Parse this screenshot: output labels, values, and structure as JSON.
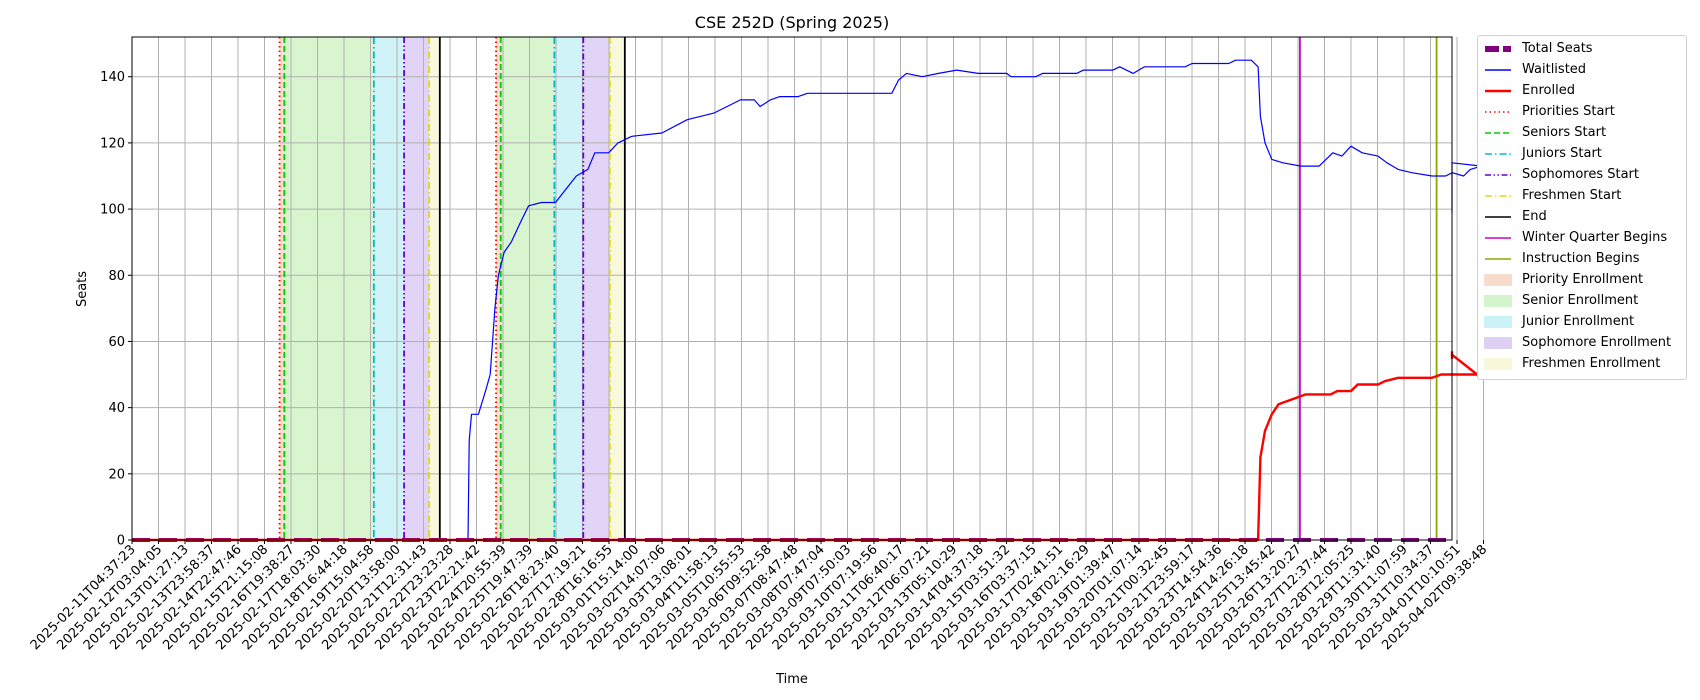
{
  "chart_data": {
    "type": "line",
    "title": "CSE 252D (Spring 2025)",
    "xlabel": "Time",
    "ylabel": "Seats",
    "ylim": [
      0,
      152
    ],
    "yticks": [
      0,
      20,
      40,
      60,
      80,
      100,
      120,
      140
    ],
    "grid": true,
    "legend_position": "outside-right",
    "xlim": [
      "2025-02-11T04:37:23",
      "2025-04-03T00:00:00"
    ],
    "xtick_labels": [
      "2025-02-11T04:37:23",
      "2025-02-12T03:04:05",
      "2025-02-13T01:27:13",
      "2025-02-13T23:58:37",
      "2025-02-14T22:47:46",
      "2025-02-15T21:15:08",
      "2025-02-16T19:38:27",
      "2025-02-17T18:03:30",
      "2025-02-18T16:44:18",
      "2025-02-19T15:04:58",
      "2025-02-20T13:58:00",
      "2025-02-21T12:31:43",
      "2025-02-22T23:23:28",
      "2025-02-23T22:21:42",
      "2025-02-24T20:55:39",
      "2025-02-25T19:47:39",
      "2025-02-26T18:23:40",
      "2025-02-27T17:19:21",
      "2025-02-28T16:16:55",
      "2025-03-01T15:14:00",
      "2025-03-02T14:07:06",
      "2025-03-03T13:08:01",
      "2025-03-04T11:58:13",
      "2025-03-05T10:55:53",
      "2025-03-06T09:52:58",
      "2025-03-07T08:47:48",
      "2025-03-08T07:47:04",
      "2025-03-09T07:50:03",
      "2025-03-10T07:19:56",
      "2025-03-11T06:40:17",
      "2025-03-12T06:07:21",
      "2025-03-13T05:10:29",
      "2025-03-14T04:37:18",
      "2025-03-15T03:51:32",
      "2025-03-16T03:37:15",
      "2025-03-17T02:41:51",
      "2025-03-18T02:16:29",
      "2025-03-19T01:39:47",
      "2025-03-20T01:07:14",
      "2025-03-21T00:32:45",
      "2025-03-21T23:59:17",
      "2025-03-23T14:54:36",
      "2025-03-24T14:26:18",
      "2025-03-25T13:45:42",
      "2025-03-26T13:20:27",
      "2025-03-27T12:37:44",
      "2025-03-28T12:05:25",
      "2025-03-29T11:31:40",
      "2025-03-30T11:07:59",
      "2025-03-31T10:34:37",
      "2025-04-01T10:10:51",
      "2025-04-02T09:38:48"
    ],
    "series": [
      {
        "name": "Total Seats",
        "color": "#800080",
        "style": "thick-dashed",
        "points": [
          [
            "2025-02-11T04:37:23",
            0
          ],
          [
            "2025-04-03T00:00:00",
            0
          ]
        ]
      },
      {
        "name": "Waitlisted",
        "color": "#0000ff",
        "style": "solid",
        "points": [
          [
            "2025-02-11T04:37:23",
            0
          ],
          [
            "2025-02-23T15:00:00",
            0
          ],
          [
            "2025-02-23T16:00:00",
            30
          ],
          [
            "2025-02-23T18:00:00",
            38
          ],
          [
            "2025-02-24T00:00:00",
            38
          ],
          [
            "2025-02-24T06:00:00",
            45
          ],
          [
            "2025-02-24T10:00:00",
            50
          ],
          [
            "2025-02-24T14:00:00",
            70
          ],
          [
            "2025-02-24T17:00:00",
            80
          ],
          [
            "2025-02-24T22:00:00",
            87
          ],
          [
            "2025-02-25T04:00:00",
            90
          ],
          [
            "2025-02-25T12:00:00",
            96
          ],
          [
            "2025-02-25T19:00:00",
            101
          ],
          [
            "2025-02-26T06:00:00",
            102
          ],
          [
            "2025-02-26T18:00:00",
            102
          ],
          [
            "2025-02-27T03:00:00",
            106
          ],
          [
            "2025-02-27T12:00:00",
            110
          ],
          [
            "2025-02-27T22:00:00",
            112
          ],
          [
            "2025-02-28T04:00:00",
            117
          ],
          [
            "2025-02-28T16:00:00",
            117
          ],
          [
            "2025-03-01T00:00:00",
            120
          ],
          [
            "2025-03-01T12:00:00",
            122
          ],
          [
            "2025-03-02T14:00:00",
            123
          ],
          [
            "2025-03-03T12:00:00",
            127
          ],
          [
            "2025-03-04T11:00:00",
            129
          ],
          [
            "2025-03-05T10:00:00",
            133
          ],
          [
            "2025-03-05T22:00:00",
            133
          ],
          [
            "2025-03-06T03:00:00",
            131
          ],
          [
            "2025-03-06T12:00:00",
            133
          ],
          [
            "2025-03-06T20:00:00",
            134
          ],
          [
            "2025-03-07T12:00:00",
            134
          ],
          [
            "2025-03-07T20:00:00",
            135
          ],
          [
            "2025-03-08T06:00:00",
            135
          ],
          [
            "2025-03-10T23:00:00",
            135
          ],
          [
            "2025-03-11T05:00:00",
            139
          ],
          [
            "2025-03-11T12:00:00",
            141
          ],
          [
            "2025-03-12T02:00:00",
            140
          ],
          [
            "2025-03-12T16:00:00",
            141
          ],
          [
            "2025-03-13T08:00:00",
            142
          ],
          [
            "2025-03-14T03:00:00",
            141
          ],
          [
            "2025-03-15T04:00:00",
            141
          ],
          [
            "2025-03-15T08:00:00",
            140
          ],
          [
            "2025-03-16T06:00:00",
            140
          ],
          [
            "2025-03-16T12:00:00",
            141
          ],
          [
            "2025-03-17T18:00:00",
            141
          ],
          [
            "2025-03-18T00:00:00",
            142
          ],
          [
            "2025-03-19T02:00:00",
            142
          ],
          [
            "2025-03-19T08:00:00",
            143
          ],
          [
            "2025-03-19T20:00:00",
            141
          ],
          [
            "2025-03-20T06:00:00",
            143
          ],
          [
            "2025-03-21T18:00:00",
            143
          ],
          [
            "2025-03-22T00:00:00",
            144
          ],
          [
            "2025-03-24T00:00:00",
            144
          ],
          [
            "2025-03-24T06:00:00",
            145
          ],
          [
            "2025-03-24T20:00:00",
            145
          ],
          [
            "2025-03-25T02:00:00",
            143
          ],
          [
            "2025-03-25T04:00:00",
            128
          ],
          [
            "2025-03-25T08:00:00",
            120
          ],
          [
            "2025-03-25T14:00:00",
            115
          ],
          [
            "2025-03-26T00:00:00",
            114
          ],
          [
            "2025-03-26T16:00:00",
            113
          ],
          [
            "2025-03-27T08:00:00",
            113
          ],
          [
            "2025-03-27T14:00:00",
            115
          ],
          [
            "2025-03-27T20:00:00",
            117
          ],
          [
            "2025-03-28T04:00:00",
            116
          ],
          [
            "2025-03-28T12:00:00",
            119
          ],
          [
            "2025-03-28T22:00:00",
            117
          ],
          [
            "2025-03-29T12:00:00",
            116
          ],
          [
            "2025-03-29T20:00:00",
            114
          ],
          [
            "2025-03-30T06:00:00",
            112
          ],
          [
            "2025-03-30T18:00:00",
            111
          ],
          [
            "2025-03-31T12:00:00",
            110
          ],
          [
            "2025-04-01T00:00:00",
            110
          ],
          [
            "2025-04-01T06:00:00",
            111
          ],
          [
            "2025-04-01T16:00:00",
            110
          ],
          [
            "2025-04-01T22:00:00",
            112
          ],
          [
            "2025-04-02T08:00:00",
            113
          ],
          [
            "2025-04-02T10:00:00",
            114
          ],
          [
            "2025-04-02T14:00:00",
            111
          ],
          [
            "2025-04-02T18:00:00",
            113
          ],
          [
            "2025-04-02T20:00:00",
            108
          ],
          [
            "2025-04-02T22:00:00",
            103
          ],
          [
            "2025-04-02T23:00:00",
            101
          ],
          [
            "2025-04-03T00:00:00",
            99
          ]
        ]
      },
      {
        "name": "Enrolled",
        "color": "#ff0000",
        "style": "thick",
        "points": [
          [
            "2025-02-11T04:37:23",
            0
          ],
          [
            "2025-03-25T02:00:00",
            0
          ],
          [
            "2025-03-25T04:00:00",
            25
          ],
          [
            "2025-03-25T08:00:00",
            33
          ],
          [
            "2025-03-25T14:00:00",
            38
          ],
          [
            "2025-03-25T20:00:00",
            41
          ],
          [
            "2025-03-26T04:00:00",
            42
          ],
          [
            "2025-03-26T12:00:00",
            43
          ],
          [
            "2025-03-26T20:00:00",
            44
          ],
          [
            "2025-03-27T18:00:00",
            44
          ],
          [
            "2025-03-28T00:00:00",
            45
          ],
          [
            "2025-03-28T12:00:00",
            45
          ],
          [
            "2025-03-28T18:00:00",
            47
          ],
          [
            "2025-03-29T12:00:00",
            47
          ],
          [
            "2025-03-29T18:00:00",
            48
          ],
          [
            "2025-03-30T06:00:00",
            49
          ],
          [
            "2025-03-31T12:00:00",
            49
          ],
          [
            "2025-03-31T20:00:00",
            50
          ],
          [
            "2025-04-02T04:00:00",
            50
          ],
          [
            "2025-04-02T10:00:00",
            56
          ],
          [
            "2025-04-02T14:00:00",
            56
          ],
          [
            "2025-04-02T18:00:00",
            55
          ],
          [
            "2025-04-02T22:00:00",
            56
          ],
          [
            "2025-04-03T00:00:00",
            57
          ]
        ]
      }
    ],
    "markers": [
      {
        "name": "Priorities Start",
        "color": "#ff0000",
        "style": "dotted",
        "x": [
          "2025-02-16T10:00:00",
          "2025-02-24T15:00:00"
        ]
      },
      {
        "name": "Seniors Start",
        "color": "#00cc00",
        "style": "dashed",
        "x": [
          "2025-02-16T14:00:00",
          "2025-02-24T19:00:00"
        ]
      },
      {
        "name": "Juniors Start",
        "color": "#00bbcc",
        "style": "dashdot",
        "x": [
          "2025-02-19T18:00:00",
          "2025-02-26T17:00:00"
        ]
      },
      {
        "name": "Sophomores Start",
        "color": "#6600cc",
        "style": "dashdotdot",
        "x": [
          "2025-02-20T20:00:00",
          "2025-02-27T18:00:00"
        ]
      },
      {
        "name": "Freshmen Start",
        "color": "#dddd00",
        "style": "dashdot",
        "x": [
          "2025-02-21T20:00:00",
          "2025-02-28T17:00:00"
        ]
      },
      {
        "name": "End",
        "color": "#000000",
        "style": "solid",
        "x": [
          "2025-02-22T10:00:00",
          "2025-03-01T06:00:00"
        ]
      },
      {
        "name": "Winter Quarter Begins",
        "color": "#cc00cc",
        "style": "solid",
        "x": [
          "2025-03-26T15:00:00"
        ]
      },
      {
        "name": "Instruction Begins",
        "color": "#88aa00",
        "style": "solid",
        "x": [
          "2025-03-31T16:00:00"
        ]
      }
    ],
    "spans": [
      {
        "name": "Priority Enrollment",
        "color": "#f4c4a8",
        "ranges": [
          [
            "2025-02-16T10:00:00",
            "2025-02-16T14:00:00"
          ],
          [
            "2025-02-24T15:00:00",
            "2025-02-24T19:00:00"
          ]
        ]
      },
      {
        "name": "Senior Enrollment",
        "color": "#b8ecaa",
        "ranges": [
          [
            "2025-02-16T14:00:00",
            "2025-02-19T18:00:00"
          ],
          [
            "2025-02-24T19:00:00",
            "2025-02-26T17:00:00"
          ]
        ]
      },
      {
        "name": "Junior Enrollment",
        "color": "#a8eaf0",
        "ranges": [
          [
            "2025-02-19T18:00:00",
            "2025-02-20T20:00:00"
          ],
          [
            "2025-02-26T17:00:00",
            "2025-02-27T18:00:00"
          ]
        ]
      },
      {
        "name": "Sophomore Enrollment",
        "color": "#c8b0ee",
        "ranges": [
          [
            "2025-02-20T20:00:00",
            "2025-02-21T20:00:00"
          ],
          [
            "2025-02-27T18:00:00",
            "2025-02-28T17:00:00"
          ]
        ]
      },
      {
        "name": "Freshmen Enrollment",
        "color": "#f3f3c0",
        "ranges": [
          [
            "2025-02-21T20:00:00",
            "2025-02-22T10:00:00"
          ],
          [
            "2025-02-28T17:00:00",
            "2025-03-01T06:00:00"
          ]
        ]
      }
    ],
    "legend": [
      {
        "label": "Total Seats",
        "kind": "thickdash",
        "color": "#800080"
      },
      {
        "label": "Waitlisted",
        "kind": "line",
        "color": "#0000ff"
      },
      {
        "label": "Enrolled",
        "kind": "thickline",
        "color": "#ff0000"
      },
      {
        "label": "Priorities Start",
        "kind": "dotted",
        "color": "#ff0000"
      },
      {
        "label": "Seniors Start",
        "kind": "dashed",
        "color": "#00cc00"
      },
      {
        "label": "Juniors Start",
        "kind": "dashdot",
        "color": "#00bbcc"
      },
      {
        "label": "Sophomores Start",
        "kind": "dashdotdot",
        "color": "#6600cc"
      },
      {
        "label": "Freshmen Start",
        "kind": "dashdot",
        "color": "#dddd00"
      },
      {
        "label": "End",
        "kind": "line",
        "color": "#000000"
      },
      {
        "label": "Winter Quarter Begins",
        "kind": "line",
        "color": "#cc00cc"
      },
      {
        "label": "Instruction Begins",
        "kind": "line",
        "color": "#88aa00"
      },
      {
        "label": "Priority Enrollment",
        "kind": "patch",
        "color": "#f4c4a8"
      },
      {
        "label": "Senior Enrollment",
        "kind": "patch",
        "color": "#b8ecaa"
      },
      {
        "label": "Junior Enrollment",
        "kind": "patch",
        "color": "#a8eaf0"
      },
      {
        "label": "Sophomore Enrollment",
        "kind": "patch",
        "color": "#c8b0ee"
      },
      {
        "label": "Freshmen Enrollment",
        "kind": "patch",
        "color": "#f3f3c0"
      }
    ]
  }
}
